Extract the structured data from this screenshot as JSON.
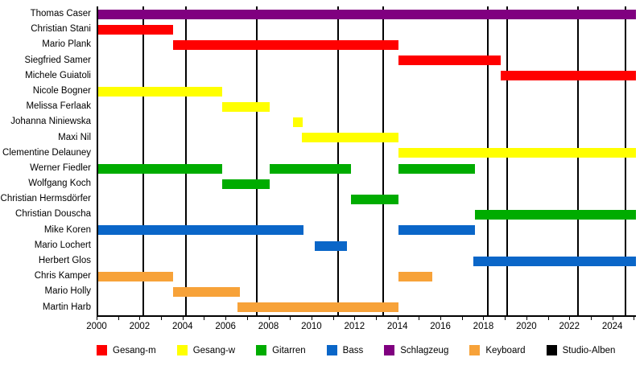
{
  "chart_data": {
    "type": "bar",
    "subtype": "gantt-member-timeline",
    "title": "",
    "x_axis": {
      "min": 2000,
      "max": 2025.1,
      "minor_tick_step": 1,
      "major_label_step": 2,
      "tick_labels": [
        "2000",
        "2002",
        "2004",
        "2006",
        "2008",
        "2010",
        "2012",
        "2014",
        "2016",
        "2018",
        "2020",
        "2022",
        "2024"
      ]
    },
    "colors": {
      "gesang_m": "#FF0000",
      "gesang_w": "#FFFF00",
      "gitarren": "#00AC00",
      "bass": "#0A66C8",
      "schlagzeug": "#800080",
      "keyboard": "#F7A239",
      "studio_alben": "#000000"
    },
    "members": [
      {
        "name": "Thomas Caser",
        "role": "Schlagzeug",
        "color_key": "schlagzeug",
        "segments": [
          [
            2000,
            2025.1
          ]
        ]
      },
      {
        "name": "Christian Stani",
        "role": "Gesang-m",
        "color_key": "gesang_m",
        "segments": [
          [
            2000,
            2003.5
          ]
        ]
      },
      {
        "name": "Mario Plank",
        "role": "Gesang-m",
        "color_key": "gesang_m",
        "segments": [
          [
            2003.5,
            2014.0
          ]
        ]
      },
      {
        "name": "Siegfried Samer",
        "role": "Gesang-m",
        "color_key": "gesang_m",
        "segments": [
          [
            2014.0,
            2018.8
          ]
        ]
      },
      {
        "name": "Michele Guiatoli",
        "role": "Gesang-m",
        "color_key": "gesang_m",
        "segments": [
          [
            2018.8,
            2025.1
          ]
        ]
      },
      {
        "name": "Nicole Bogner",
        "role": "Gesang-w",
        "color_key": "gesang_w",
        "segments": [
          [
            2000,
            2005.8
          ]
        ]
      },
      {
        "name": "Melissa Ferlaak",
        "role": "Gesang-w",
        "color_key": "gesang_w",
        "segments": [
          [
            2005.8,
            2008.0
          ]
        ]
      },
      {
        "name": "Johanna Niniewska",
        "role": "Gesang-w",
        "color_key": "gesang_w",
        "segments": [
          [
            2009.1,
            2009.55
          ]
        ]
      },
      {
        "name": "Maxi Nil",
        "role": "Gesang-w",
        "color_key": "gesang_w",
        "segments": [
          [
            2009.5,
            2014.0
          ]
        ]
      },
      {
        "name": "Clementine Delauney",
        "role": "Gesang-w",
        "color_key": "gesang_w",
        "segments": [
          [
            2014.0,
            2025.1
          ]
        ]
      },
      {
        "name": "Werner Fiedler",
        "role": "Gitarren",
        "color_key": "gitarren",
        "segments": [
          [
            2000,
            2005.8
          ],
          [
            2008.0,
            2011.8
          ],
          [
            2014.0,
            2017.6
          ]
        ]
      },
      {
        "name": "Wolfgang Koch",
        "role": "Gitarren",
        "color_key": "gitarren",
        "segments": [
          [
            2005.8,
            2008.0
          ]
        ]
      },
      {
        "name": "Christian Hermsdörfer",
        "role": "Gitarren",
        "color_key": "gitarren",
        "segments": [
          [
            2011.8,
            2014.0
          ]
        ]
      },
      {
        "name": "Christian Douscha",
        "role": "Gitarren",
        "color_key": "gitarren",
        "segments": [
          [
            2017.6,
            2025.1
          ]
        ]
      },
      {
        "name": "Mike Koren",
        "role": "Bass",
        "color_key": "bass",
        "segments": [
          [
            2000,
            2009.6
          ],
          [
            2014.0,
            2017.6
          ]
        ]
      },
      {
        "name": "Mario Lochert",
        "role": "Bass",
        "color_key": "bass",
        "segments": [
          [
            2010.1,
            2011.6
          ]
        ]
      },
      {
        "name": "Herbert Glos",
        "role": "Bass",
        "color_key": "bass",
        "segments": [
          [
            2017.5,
            2025.1
          ]
        ]
      },
      {
        "name": "Chris Kamper",
        "role": "Keyboard",
        "color_key": "keyboard",
        "segments": [
          [
            2000,
            2003.5
          ],
          [
            2014.0,
            2015.6
          ]
        ]
      },
      {
        "name": "Mario Holly",
        "role": "Keyboard",
        "color_key": "keyboard",
        "segments": [
          [
            2003.5,
            2006.6
          ]
        ]
      },
      {
        "name": "Martin Harb",
        "role": "Keyboard",
        "color_key": "keyboard",
        "segments": [
          [
            2006.5,
            2014.0
          ]
        ]
      }
    ],
    "album_marker_years": [
      2002.1,
      2004.1,
      2007.4,
      2011.2,
      2013.3,
      2018.2,
      2019.1,
      2022.4,
      2024.6
    ],
    "legend": [
      {
        "label": "Gesang-m",
        "color_key": "gesang_m"
      },
      {
        "label": "Gesang-w",
        "color_key": "gesang_w"
      },
      {
        "label": "Gitarren",
        "color_key": "gitarren"
      },
      {
        "label": "Bass",
        "color_key": "bass"
      },
      {
        "label": "Schlagzeug",
        "color_key": "schlagzeug"
      },
      {
        "label": "Keyboard",
        "color_key": "keyboard"
      },
      {
        "label": "Studio-Alben",
        "color_key": "studio_alben"
      }
    ]
  }
}
